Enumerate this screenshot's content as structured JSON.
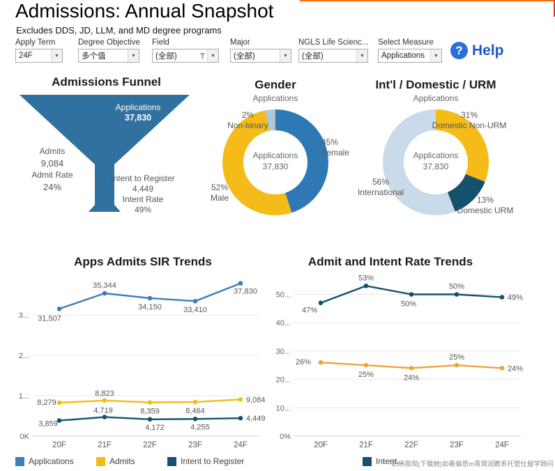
{
  "page": {
    "title": "Admissions: Annual Snapshot",
    "subtitle": "Excludes DDS, JD, LLM, and MD degree programs"
  },
  "icons": {
    "help_glyph": "?",
    "caret_glyph": "▼"
  },
  "help": {
    "label": "Help"
  },
  "filters": [
    {
      "label": "Apply Term",
      "value": "24F"
    },
    {
      "label": "Degree Objective",
      "value": "多个值"
    },
    {
      "label": "Field",
      "value": "(全部)"
    },
    {
      "label": "Major",
      "value": "(全部)"
    },
    {
      "label": "NGLS Life Scienc...",
      "value": "(全部)"
    },
    {
      "label": "Select Measure",
      "value": "Applications"
    }
  ],
  "chart_data": [
    {
      "id": "admissions_funnel",
      "type": "funnel",
      "title": "Admissions Funnel",
      "color": "#31719f",
      "stages": [
        {
          "label": "Applications",
          "value": 37830,
          "value_label": "37,830"
        },
        {
          "label": "Admits",
          "value": 9084,
          "value_label": "9,084",
          "rate_label": "Admit Rate",
          "rate": "24%"
        },
        {
          "label": "Intent to Register",
          "value": 4449,
          "value_label": "4,449",
          "rate_label": "Intent Rate",
          "rate": "49%"
        }
      ]
    },
    {
      "id": "gender_donut",
      "type": "pie",
      "title": "Gender",
      "subtitle": "Applications",
      "center_label": "Applications",
      "center_value": "37,830",
      "slices": [
        {
          "label": "Female",
          "pct": 45,
          "pct_label": "45%",
          "color": "#2e79b5"
        },
        {
          "label": "Male",
          "pct": 52,
          "pct_label": "52%",
          "color": "#f5bb18"
        },
        {
          "label": "Non-binary",
          "pct": 2,
          "pct_label": "2%",
          "color": "#a9c9e6"
        },
        {
          "label": "",
          "pct": 1,
          "pct_label": "",
          "color": "#b9bfc4"
        }
      ]
    },
    {
      "id": "intl_domestic_urm_donut",
      "type": "pie",
      "title": "Int'l / Domestic / URM",
      "subtitle": "Applications",
      "center_label": "Applications",
      "center_value": "37,830",
      "slices": [
        {
          "label": "Domestic Non-URM",
          "pct": 31,
          "pct_label": "31%",
          "color": "#f5bb18"
        },
        {
          "label": "Domestic URM",
          "pct": 13,
          "pct_label": "13%",
          "color": "#15516d"
        },
        {
          "label": "International",
          "pct": 56,
          "pct_label": "56%",
          "color": "#c9daea"
        }
      ]
    },
    {
      "id": "apps_admits_sir_trends",
      "type": "line",
      "title": "Apps Admits SIR Trends",
      "categories": [
        "20F",
        "21F",
        "22F",
        "23F",
        "24F"
      ],
      "y_ticks": [
        "0K",
        "1...",
        "2...",
        "3..."
      ],
      "y_tick_values": [
        0,
        10000,
        20000,
        30000
      ],
      "ylim": [
        0,
        40000
      ],
      "series": [
        {
          "name": "Applications",
          "color": "#3c7eb7",
          "values": [
            31507,
            35344,
            34150,
            33410,
            37830
          ],
          "labels": [
            "31,507",
            "35,344",
            "34,150",
            "33,410",
            "37,830"
          ]
        },
        {
          "name": "Admits",
          "color": "#f5bb18",
          "values": [
            8279,
            8823,
            8359,
            8464,
            9084
          ],
          "labels": [
            "8,279",
            "8,823",
            "8,359",
            "8,464",
            "9,084"
          ]
        },
        {
          "name": "Intent to Register",
          "color": "#15516d",
          "values": [
            3859,
            4719,
            4172,
            4255,
            4449
          ],
          "labels": [
            "3,859",
            "4,719",
            "4,172",
            "4,255",
            "4,449"
          ]
        }
      ]
    },
    {
      "id": "admit_intent_rate_trends",
      "type": "line",
      "title": "Admit and Intent Rate Trends",
      "categories": [
        "20F",
        "21F",
        "22F",
        "23F",
        "24F"
      ],
      "y_ticks": [
        "0%",
        "10...",
        "20...",
        "30...",
        "40...",
        "50..."
      ],
      "y_tick_values": [
        0,
        10,
        20,
        30,
        40,
        50
      ],
      "ylim": [
        0,
        57
      ],
      "series": [
        {
          "name": "Intent Rate",
          "color": "#15516d",
          "values": [
            47,
            53,
            50,
            50,
            49
          ],
          "labels": [
            "47%",
            "53%",
            "50%",
            "50%",
            "49%"
          ]
        },
        {
          "name": "Admit Rate",
          "color": "#eda437",
          "values": [
            26,
            25,
            24,
            25,
            24
          ],
          "labels": [
            "26%",
            "25%",
            "24%",
            "25%",
            "24%"
          ]
        }
      ]
    }
  ],
  "legend": {
    "items": [
      {
        "label": "Applications",
        "color": "#3c7eb7"
      },
      {
        "label": "Admits",
        "color": "#f5bb18"
      },
      {
        "label": "Intent to Register",
        "color": "#15516d"
      },
      {
        "label": "Intent...",
        "color": "#15516d"
      }
    ]
  },
  "watermark": "职场我规(下载她)如看偏思m青观润教系托管仕留学顾问"
}
